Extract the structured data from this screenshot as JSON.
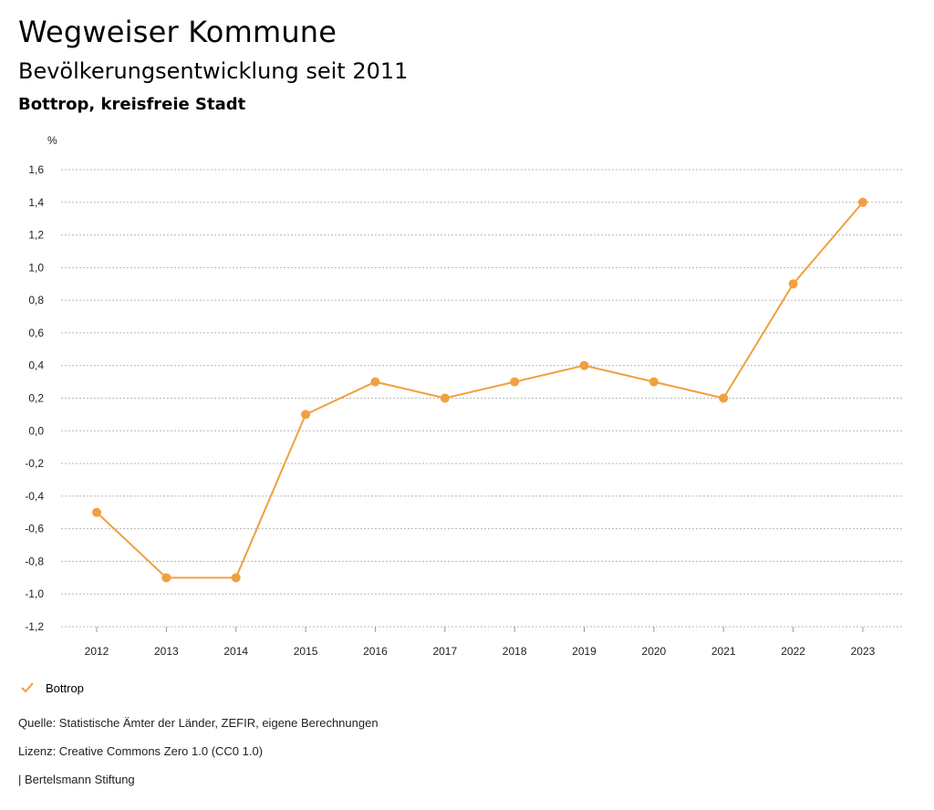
{
  "header": {
    "title": "Wegweiser Kommune",
    "subtitle": "Bevölkerungsentwicklung seit 2011",
    "region": "Bottrop, kreisfreie Stadt"
  },
  "chart_data": {
    "type": "line",
    "unit_label": "%",
    "x": [
      "2012",
      "2013",
      "2014",
      "2015",
      "2016",
      "2017",
      "2018",
      "2019",
      "2020",
      "2021",
      "2022",
      "2023"
    ],
    "series": [
      {
        "name": "Bottrop",
        "values": [
          -0.5,
          -0.9,
          -0.9,
          0.1,
          0.3,
          0.2,
          0.3,
          0.4,
          0.3,
          0.2,
          0.9,
          1.4
        ]
      }
    ],
    "ylim": [
      -1.2,
      1.6
    ],
    "yticks": [
      1.6,
      1.4,
      1.2,
      1.0,
      0.8,
      0.6,
      0.4,
      0.2,
      0.0,
      -0.2,
      -0.4,
      -0.6,
      -0.8,
      -1.0,
      -1.2
    ],
    "ytick_labels": [
      "1,6",
      "1,4",
      "1,2",
      "1,0",
      "0,8",
      "0,6",
      "0,4",
      "0,2",
      "0,0",
      "-0,2",
      "-0,4",
      "-0,6",
      "-0,8",
      "-1,0",
      "-1,2"
    ],
    "grid": true,
    "legend": "bottom-left",
    "color": "#F0A040"
  },
  "legend": {
    "label": "Bottrop"
  },
  "footer": {
    "source": "Quelle: Statistische Ämter der Länder, ZEFIR, eigene Berechnungen",
    "license": "Lizenz: Creative Commons Zero 1.0 (CC0 1.0)",
    "publisher": "| Bertelsmann Stiftung"
  }
}
